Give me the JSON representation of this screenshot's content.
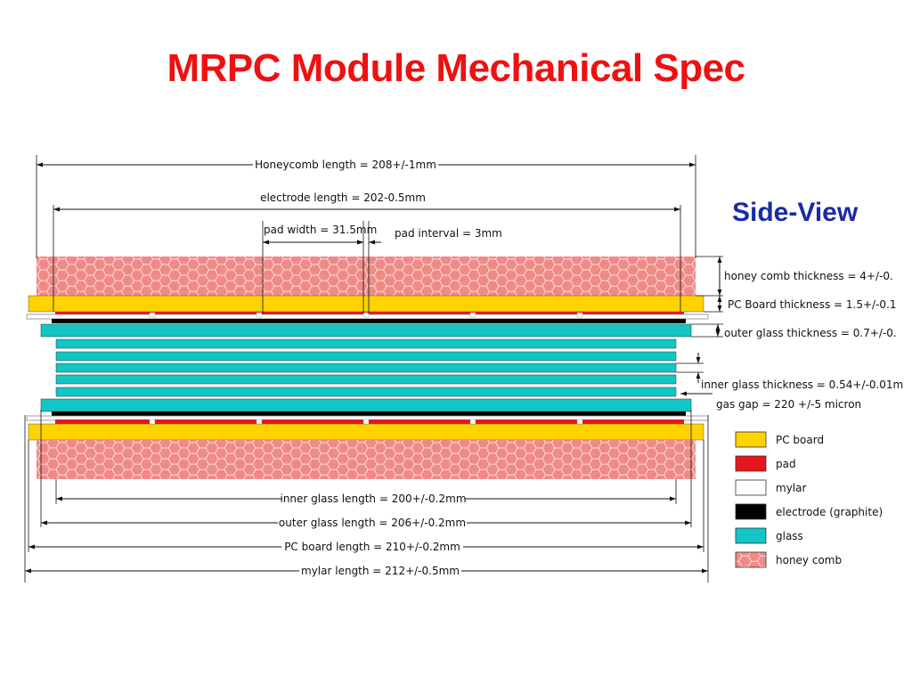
{
  "title": "MRPC Module Mechanical Spec",
  "side_view_label": "Side-View",
  "colors": {
    "title": "#ee1111",
    "side_view": "#1a2aa8",
    "pc_board": "#ffd200",
    "pad": "#e8161c",
    "mylar": "#ffffff",
    "electrode": "#000000",
    "glass": "#11c6c4",
    "honey_comb": "#f08a86"
  },
  "dimensions": {
    "honeycomb_length": "Honeycomb length = 208+/-1mm",
    "electrode_length": "electrode length = 202-0.5mm",
    "pad_width": "pad width = 31.5mm",
    "pad_interval": "pad interval = 3mm",
    "honey_comb_thickness": "honey comb thickness = 4+/-0.",
    "pc_board_thickness": "PC Board thickness = 1.5+/-0.1",
    "outer_glass_thickness": "outer glass thickness = 0.7+/-0.",
    "inner_glass_thickness": "inner glass thickness = 0.54+/-0.01m",
    "gas_gap": "gas gap = 220 +/-5 micron",
    "inner_glass_length": "inner glass length = 200+/-0.2mm",
    "outer_glass_length": "outer glass length = 206+/-0.2mm",
    "pc_board_length": "PC board length = 210+/-0.2mm",
    "mylar_length": "mylar length = 212+/-0.5mm"
  },
  "legend": [
    {
      "label": "PC board",
      "color": "#ffd200",
      "pattern": "solid"
    },
    {
      "label": "pad",
      "color": "#e8161c",
      "pattern": "solid"
    },
    {
      "label": "mylar",
      "color": "#ffffff",
      "pattern": "solid"
    },
    {
      "label": "electrode (graphite)",
      "color": "#000000",
      "pattern": "solid"
    },
    {
      "label": "glass",
      "color": "#11c6c4",
      "pattern": "solid"
    },
    {
      "label": "honey comb",
      "color": "#f08a86",
      "pattern": "hexagon"
    }
  ]
}
